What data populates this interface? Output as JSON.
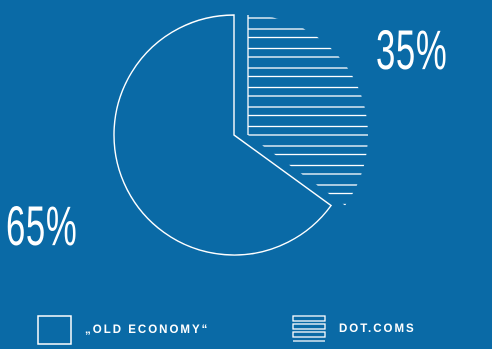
{
  "colors": {
    "background": "#0a6aa6",
    "foreground": "#ffffff"
  },
  "chart_data": {
    "type": "pie",
    "slices": [
      {
        "label": "„OLD ECONOMY“",
        "value": 65,
        "value_label": "65%",
        "fill": "outline"
      },
      {
        "label": "DOT.COMS",
        "value": 35,
        "value_label": "35%",
        "fill": "horizontal-stripes"
      }
    ],
    "legend_position": "bottom"
  }
}
